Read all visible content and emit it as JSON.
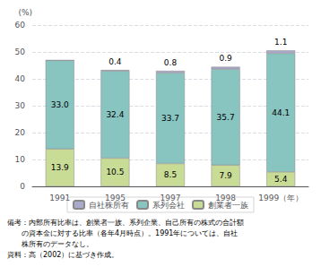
{
  "chart_data": {
    "type": "bar",
    "stacked": true,
    "categories": [
      "1991",
      "1995",
      "1997",
      "1998",
      "1999（年）"
    ],
    "series": [
      {
        "name": "創業者一族",
        "color": "#c8dc96",
        "values": [
          13.9,
          10.5,
          8.5,
          7.9,
          5.4
        ]
      },
      {
        "name": "系列会社",
        "color": "#88c4c0",
        "values": [
          33.0,
          32.4,
          33.7,
          35.7,
          44.1
        ],
        "value_labels": [
          "33.0",
          "32.4",
          "33.7",
          "35.7",
          "44.1"
        ]
      },
      {
        "name": "自社株所有",
        "color": "#aaaacc",
        "values": [
          0,
          0.4,
          0.8,
          0.9,
          1.1
        ],
        "value_labels": [
          null,
          "0.4",
          "0.8",
          "0.9",
          "1.1"
        ]
      }
    ],
    "y_label": "(%)",
    "ylim": [
      0,
      60
    ],
    "yticks": [
      0,
      10,
      20,
      30,
      40,
      50,
      60
    ],
    "grid": true,
    "legend": "bottom",
    "data_labels": true,
    "annotations": [
      "備考：内部所有比率は、創業者一族、系列企業、自己所有の株式の合計額",
      "　　の資本金に対する比率（各年4月時点）。1991年については、自社",
      "　　株所有のデータなし。",
      "資料：高（2002）に基づき作成。"
    ]
  }
}
